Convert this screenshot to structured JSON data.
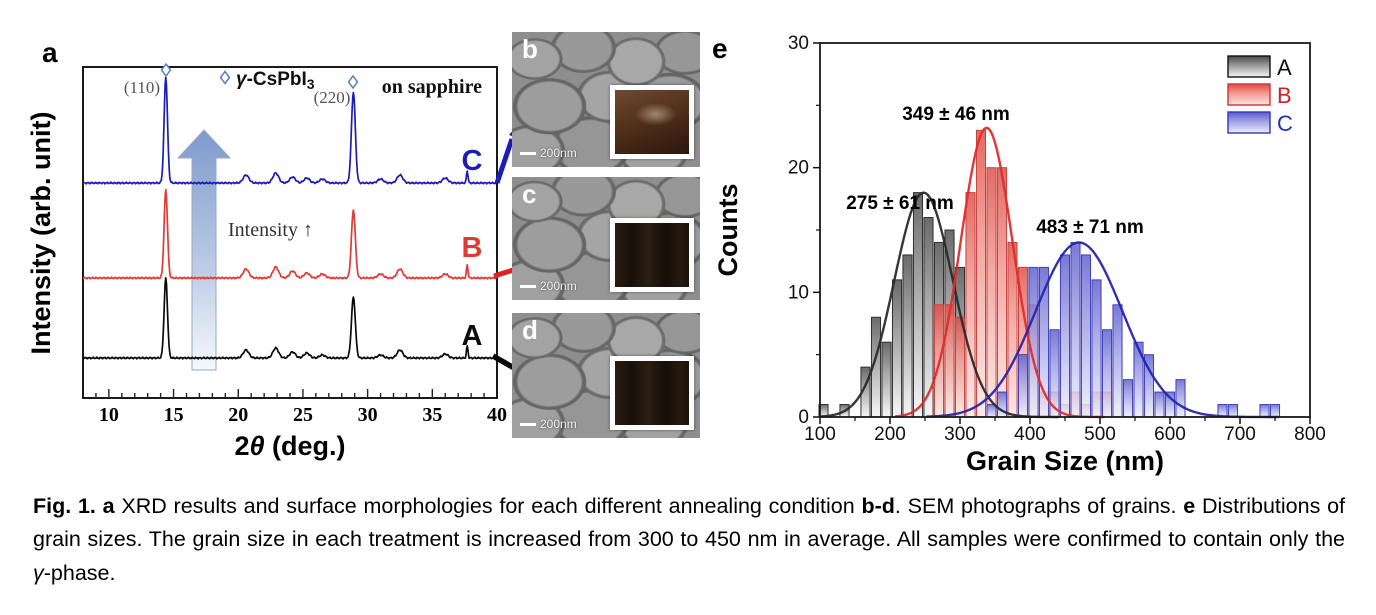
{
  "chart_data": [
    {
      "id": "xrd",
      "type": "line",
      "panel_label": "a",
      "title": "",
      "xlabel": "2θ (deg.)",
      "xlabel_parts": {
        "pre": "2",
        "theta": "θ",
        "post": " (deg.)"
      },
      "ylabel": "Intensity (arb. unit)",
      "xlim": [
        8,
        40
      ],
      "xticks": [
        10,
        15,
        20,
        25,
        30,
        35,
        40
      ],
      "peak_annotations": {
        "p110": "(110)",
        "p220": "(220)"
      },
      "legend_marker": "◇",
      "legend_gamma": "γ",
      "legend_compound": "-CsPbI",
      "legend_sub": "3",
      "substrate_note": "on sapphire",
      "arrow_annotation": "Intensity ↑",
      "peak_positions_deg": [
        14.4,
        20.6,
        22.9,
        24.2,
        25.3,
        26.5,
        28.9,
        31.0,
        32.5,
        36.0,
        37.7
      ],
      "series": [
        {
          "name": "A",
          "color": "#0a0a0a",
          "peaks": [
            [
              14.4,
              80,
              0.13
            ],
            [
              20.6,
              8,
              0.22
            ],
            [
              22.9,
              10,
              0.22
            ],
            [
              24.2,
              6,
              0.22
            ],
            [
              25.3,
              5,
              0.22
            ],
            [
              26.5,
              3,
              0.22
            ],
            [
              28.9,
              61,
              0.15
            ],
            [
              31.0,
              3,
              0.22
            ],
            [
              32.5,
              8,
              0.22
            ],
            [
              36.0,
              4,
              0.22
            ],
            [
              37.7,
              12,
              0.06
            ]
          ]
        },
        {
          "name": "B",
          "color": "#e03a35",
          "peaks": [
            [
              14.4,
              88,
              0.13
            ],
            [
              20.6,
              9,
              0.22
            ],
            [
              22.9,
              11,
              0.22
            ],
            [
              24.2,
              7,
              0.22
            ],
            [
              25.3,
              5,
              0.22
            ],
            [
              26.5,
              4,
              0.22
            ],
            [
              28.9,
              68,
              0.15
            ],
            [
              31.0,
              4,
              0.22
            ],
            [
              32.5,
              9,
              0.22
            ],
            [
              36.0,
              4,
              0.22
            ],
            [
              37.7,
              13,
              0.06
            ]
          ]
        },
        {
          "name": "C",
          "color": "#1c1cb8",
          "peaks": [
            [
              14.4,
              106,
              0.13
            ],
            [
              20.6,
              8,
              0.22
            ],
            [
              22.9,
              10,
              0.22
            ],
            [
              24.2,
              6,
              0.22
            ],
            [
              25.3,
              5,
              0.22
            ],
            [
              26.5,
              4,
              0.22
            ],
            [
              28.9,
              91,
              0.15
            ],
            [
              31.0,
              4,
              0.22
            ],
            [
              32.5,
              8,
              0.22
            ],
            [
              36.0,
              5,
              0.22
            ],
            [
              37.7,
              12,
              0.06
            ]
          ]
        }
      ]
    },
    {
      "id": "grain-size-histogram",
      "type": "bar",
      "panel_label": "e",
      "title": "",
      "xlabel": "Grain Size (nm)",
      "ylabel": "Counts",
      "xlim": [
        100,
        800
      ],
      "ylim": [
        0,
        30
      ],
      "xticks": [
        100,
        200,
        300,
        400,
        500,
        600,
        700,
        800
      ],
      "yticks": [
        0,
        10,
        20,
        30
      ],
      "bin_width": 15,
      "legend_position": "top-right",
      "series": [
        {
          "name": "A",
          "annotation": "275 ± 61 nm",
          "curve_color": "#2b2b2b",
          "bar_stroke": "#2f2f2f",
          "bar_fill_top": "#4a4a4a",
          "bar_fill_bottom": "#f5f5f5",
          "fit_gaussian": {
            "amplitude": 18,
            "mean": 248,
            "sigma": 42
          },
          "bins": [
            [
              105,
              1
            ],
            [
              135,
              1
            ],
            [
              165,
              4
            ],
            [
              180,
              8
            ],
            [
              195,
              6
            ],
            [
              210,
              11
            ],
            [
              225,
              13
            ],
            [
              240,
              18
            ],
            [
              255,
              16
            ],
            [
              270,
              14
            ],
            [
              285,
              15
            ],
            [
              300,
              12
            ]
          ]
        },
        {
          "name": "B",
          "annotation": "349 ± 46 nm",
          "curve_color": "#e02c2c",
          "bar_stroke": "#c8423d",
          "bar_fill_top": "#e06058",
          "bar_fill_bottom": "#fdeae8",
          "fit_gaussian": {
            "amplitude": 23.2,
            "mean": 338,
            "sigma": 37
          },
          "bins": [
            [
              270,
              9
            ],
            [
              285,
              9
            ],
            [
              300,
              8
            ],
            [
              315,
              18
            ],
            [
              330,
              23
            ],
            [
              345,
              20
            ],
            [
              360,
              20
            ],
            [
              375,
              14
            ],
            [
              390,
              12
            ],
            [
              405,
              9
            ],
            [
              420,
              2
            ],
            [
              435,
              2
            ],
            [
              450,
              1
            ],
            [
              465,
              2
            ],
            [
              480,
              1
            ],
            [
              495,
              2
            ],
            [
              510,
              2
            ]
          ]
        },
        {
          "name": "C",
          "annotation": "483 ± 71 nm",
          "curve_color": "#2626ad",
          "bar_stroke": "#4040bb",
          "bar_fill_top": "#5b5bce",
          "bar_fill_bottom": "#eceefc",
          "fit_gaussian": {
            "amplitude": 14,
            "mean": 470,
            "sigma": 62
          },
          "bins": [
            [
              345,
              1
            ],
            [
              360,
              2
            ],
            [
              390,
              5
            ],
            [
              405,
              12
            ],
            [
              420,
              12
            ],
            [
              435,
              7
            ],
            [
              450,
              13
            ],
            [
              465,
              14
            ],
            [
              480,
              13
            ],
            [
              495,
              11
            ],
            [
              510,
              7
            ],
            [
              525,
              9
            ],
            [
              540,
              3
            ],
            [
              555,
              6
            ],
            [
              570,
              5
            ],
            [
              585,
              2
            ],
            [
              600,
              2
            ],
            [
              615,
              3
            ],
            [
              675,
              1
            ],
            [
              690,
              1
            ],
            [
              735,
              1
            ],
            [
              750,
              1
            ]
          ]
        }
      ]
    }
  ],
  "sem_panels": [
    {
      "label": "b",
      "scale_label": "200nm"
    },
    {
      "label": "c",
      "scale_label": "200nm"
    },
    {
      "label": "d",
      "scale_label": "200nm"
    }
  ],
  "caption": {
    "segments": [
      {
        "text": "Fig. 1. a",
        "bold": true,
        "italic": false
      },
      {
        "text": " XRD results and surface morphologies for each different annealing condition ",
        "bold": false,
        "italic": false
      },
      {
        "text": "b-d",
        "bold": true,
        "italic": false
      },
      {
        "text": ". SEM photographs of grains. ",
        "bold": false,
        "italic": false
      },
      {
        "text": "e",
        "bold": true,
        "italic": false
      },
      {
        "text": " Distributions of grain sizes. The grain size in each treatment is increased from 300 to 450 nm in average. All samples were confirmed to contain only the ",
        "bold": false,
        "italic": false
      },
      {
        "text": "γ",
        "bold": false,
        "italic": true
      },
      {
        "text": "-phase.",
        "bold": false,
        "italic": false
      }
    ]
  }
}
